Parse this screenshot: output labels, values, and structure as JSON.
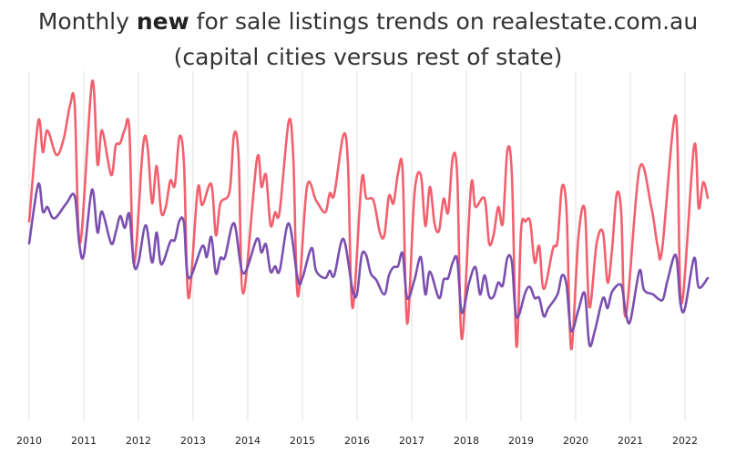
{
  "chart_data": {
    "type": "line",
    "title_pre": "Monthly ",
    "title_bold": "new",
    "title_post": " for sale listings trends on realestate.com.au",
    "subtitle": "(capital cities versus rest of state)",
    "xlabel": "",
    "ylabel": "",
    "x_unit": "months since Jan 2010",
    "y_unit": "relative listings index (axis unlabelled)",
    "xlim": [
      0,
      150
    ],
    "ylim": [
      0,
      380
    ],
    "grid": "vertical lines at each year",
    "x_ticks": [
      {
        "month": 0,
        "label": "2010"
      },
      {
        "month": 12,
        "label": "2011"
      },
      {
        "month": 24,
        "label": "2012"
      },
      {
        "month": 36,
        "label": "2013"
      },
      {
        "month": 48,
        "label": "2014"
      },
      {
        "month": 60,
        "label": "2015"
      },
      {
        "month": 72,
        "label": "2016"
      },
      {
        "month": 84,
        "label": "2017"
      },
      {
        "month": 96,
        "label": "2018"
      },
      {
        "month": 108,
        "label": "2019"
      },
      {
        "month": 120,
        "label": "2020"
      },
      {
        "month": 132,
        "label": "2021"
      },
      {
        "month": 144,
        "label": "2022"
      }
    ],
    "series": [
      {
        "name": "capital cities",
        "color": "#f2606e",
        "points": [
          [
            0,
            217
          ],
          [
            2,
            327
          ],
          [
            3,
            293
          ],
          [
            4,
            317
          ],
          [
            6,
            290
          ],
          [
            7.6,
            308
          ],
          [
            9,
            345
          ],
          [
            10,
            345
          ],
          [
            11.2,
            193
          ],
          [
            13.8,
            370
          ],
          [
            15,
            280
          ],
          [
            16,
            317
          ],
          [
            18,
            268
          ],
          [
            19,
            300
          ],
          [
            20,
            303
          ],
          [
            21,
            318
          ],
          [
            22,
            318
          ],
          [
            23,
            170
          ],
          [
            25,
            299
          ],
          [
            26,
            299
          ],
          [
            27,
            237
          ],
          [
            28,
            278
          ],
          [
            29,
            227
          ],
          [
            30,
            233
          ],
          [
            31,
            262
          ],
          [
            32,
            257
          ],
          [
            33,
            310
          ],
          [
            34,
            280
          ],
          [
            35,
            133
          ],
          [
            37,
            252
          ],
          [
            38,
            235
          ],
          [
            40,
            258
          ],
          [
            41,
            202
          ],
          [
            42,
            237
          ],
          [
            44,
            250
          ],
          [
            45,
            313
          ],
          [
            46,
            287
          ],
          [
            47,
            138
          ],
          [
            50,
            285
          ],
          [
            51,
            255
          ],
          [
            52,
            268
          ],
          [
            53,
            213
          ],
          [
            54,
            227
          ],
          [
            55,
            228
          ],
          [
            57,
            327
          ],
          [
            58,
            287
          ],
          [
            59,
            135
          ],
          [
            61,
            255
          ],
          [
            63,
            240
          ],
          [
            65,
            227
          ],
          [
            66,
            248
          ],
          [
            67,
            247
          ],
          [
            69,
            312
          ],
          [
            70,
            280
          ],
          [
            71,
            122
          ],
          [
            73,
            262
          ],
          [
            74,
            243
          ],
          [
            75.6,
            240
          ],
          [
            77,
            205
          ],
          [
            78,
            202
          ],
          [
            79,
            245
          ],
          [
            80,
            237
          ],
          [
            81,
            270
          ],
          [
            82,
            273
          ],
          [
            83,
            105
          ],
          [
            84.6,
            247
          ],
          [
            86,
            268
          ],
          [
            87,
            212
          ],
          [
            88,
            255
          ],
          [
            89,
            215
          ],
          [
            90,
            207
          ],
          [
            91,
            242
          ],
          [
            92,
            227
          ],
          [
            93,
            287
          ],
          [
            94,
            267
          ],
          [
            95,
            88
          ],
          [
            97,
            255
          ],
          [
            98,
            233
          ],
          [
            100,
            242
          ],
          [
            101,
            193
          ],
          [
            102,
            203
          ],
          [
            103,
            233
          ],
          [
            104,
            215
          ],
          [
            105,
            295
          ],
          [
            106,
            267
          ],
          [
            107,
            80
          ],
          [
            108,
            207
          ],
          [
            109,
            217
          ],
          [
            110,
            217
          ],
          [
            111,
            172
          ],
          [
            112,
            190
          ],
          [
            113,
            143
          ],
          [
            115,
            187
          ],
          [
            116,
            195
          ],
          [
            117,
            255
          ],
          [
            118,
            228
          ],
          [
            119,
            77
          ],
          [
            120.6,
            200
          ],
          [
            122,
            230
          ],
          [
            123,
            123
          ],
          [
            124.6,
            193
          ],
          [
            126,
            205
          ],
          [
            127,
            150
          ],
          [
            128,
            187
          ],
          [
            129,
            247
          ],
          [
            130,
            227
          ],
          [
            131,
            113
          ],
          [
            134,
            275
          ],
          [
            136.6,
            233
          ],
          [
            138,
            190
          ],
          [
            139,
            187
          ],
          [
            142,
            333
          ],
          [
            143.2,
            127
          ],
          [
            146,
            300
          ],
          [
            147,
            232
          ],
          [
            148,
            260
          ],
          [
            149,
            243
          ]
        ]
      },
      {
        "name": "rest of state",
        "color": "#7b4fb0",
        "points": [
          [
            0,
            193
          ],
          [
            2,
            258
          ],
          [
            3,
            228
          ],
          [
            4,
            233
          ],
          [
            5,
            222
          ],
          [
            6,
            222
          ],
          [
            8.2,
            237
          ],
          [
            10,
            245
          ],
          [
            11,
            193
          ],
          [
            12,
            180
          ],
          [
            13.8,
            252
          ],
          [
            15,
            205
          ],
          [
            16,
            228
          ],
          [
            18,
            193
          ],
          [
            19,
            205
          ],
          [
            20,
            223
          ],
          [
            21,
            210
          ],
          [
            22,
            225
          ],
          [
            23,
            170
          ],
          [
            24,
            172
          ],
          [
            25.6,
            213
          ],
          [
            27,
            172
          ],
          [
            28,
            205
          ],
          [
            29,
            170
          ],
          [
            31,
            195
          ],
          [
            32,
            197
          ],
          [
            33,
            218
          ],
          [
            34,
            215
          ],
          [
            35,
            155
          ],
          [
            38,
            190
          ],
          [
            39,
            178
          ],
          [
            40,
            200
          ],
          [
            41,
            160
          ],
          [
            42,
            177
          ],
          [
            43,
            178
          ],
          [
            45,
            215
          ],
          [
            47,
            160
          ],
          [
            50,
            198
          ],
          [
            51,
            183
          ],
          [
            52,
            192
          ],
          [
            53,
            162
          ],
          [
            54,
            168
          ],
          [
            55,
            163
          ],
          [
            57,
            215
          ],
          [
            59,
            153
          ],
          [
            60,
            155
          ],
          [
            62,
            188
          ],
          [
            63,
            163
          ],
          [
            65,
            155
          ],
          [
            66,
            163
          ],
          [
            67,
            158
          ],
          [
            69,
            198
          ],
          [
            71,
            142
          ],
          [
            72,
            138
          ],
          [
            73,
            180
          ],
          [
            74,
            180
          ],
          [
            75,
            160
          ],
          [
            76.2,
            153
          ],
          [
            78,
            137
          ],
          [
            79,
            158
          ],
          [
            80,
            167
          ],
          [
            81,
            168
          ],
          [
            82,
            182
          ],
          [
            83,
            133
          ],
          [
            84.6,
            153
          ],
          [
            86,
            178
          ],
          [
            87,
            137
          ],
          [
            88,
            162
          ],
          [
            90,
            133
          ],
          [
            91,
            153
          ],
          [
            92,
            155
          ],
          [
            93,
            172
          ],
          [
            94,
            175
          ],
          [
            95,
            117
          ],
          [
            96.6,
            150
          ],
          [
            98,
            167
          ],
          [
            99,
            137
          ],
          [
            100,
            158
          ],
          [
            101,
            135
          ],
          [
            102,
            135
          ],
          [
            103,
            150
          ],
          [
            104,
            147
          ],
          [
            105,
            177
          ],
          [
            106,
            172
          ],
          [
            107,
            112
          ],
          [
            109,
            140
          ],
          [
            110,
            145
          ],
          [
            111,
            133
          ],
          [
            112,
            133
          ],
          [
            113,
            113
          ],
          [
            114,
            122
          ],
          [
            116,
            137
          ],
          [
            117,
            158
          ],
          [
            118,
            147
          ],
          [
            119,
            97
          ],
          [
            120.6,
            120
          ],
          [
            122,
            138
          ],
          [
            123,
            82
          ],
          [
            124.2,
            97
          ],
          [
            126,
            133
          ],
          [
            127,
            122
          ],
          [
            128,
            140
          ],
          [
            130,
            147
          ],
          [
            131,
            117
          ],
          [
            132,
            108
          ],
          [
            134,
            163
          ],
          [
            135,
            142
          ],
          [
            137,
            137
          ],
          [
            138.2,
            132
          ],
          [
            139.2,
            132
          ],
          [
            140.2,
            153
          ],
          [
            142,
            180
          ],
          [
            143,
            127
          ],
          [
            144,
            122
          ],
          [
            146,
            177
          ],
          [
            147,
            145
          ],
          [
            149,
            155
          ]
        ]
      }
    ]
  }
}
